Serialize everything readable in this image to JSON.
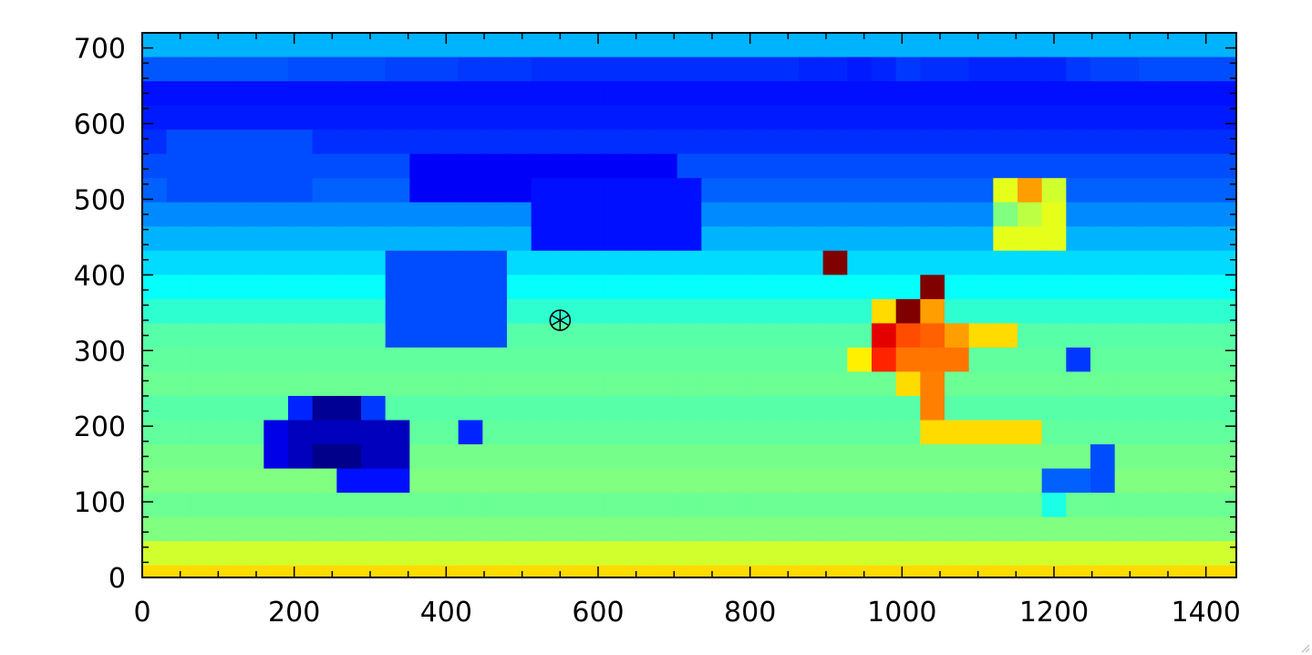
{
  "chart_data": {
    "type": "heatmap",
    "title": "",
    "xlabel": "",
    "ylabel": "",
    "colormap": "jet",
    "vmin": 0,
    "vmax": 100,
    "xlim": [
      0,
      1440
    ],
    "ylim": [
      0,
      720
    ],
    "x_ticks": [
      0,
      200,
      400,
      600,
      800,
      1000,
      1200,
      1400
    ],
    "y_ticks": [
      0,
      100,
      200,
      300,
      400,
      500,
      600,
      700
    ],
    "x_tick_labels": [
      "0",
      "200",
      "400",
      "600",
      "800",
      "1000",
      "1200",
      "1400"
    ],
    "y_tick_labels": [
      "0",
      "100",
      "200",
      "300",
      "400",
      "500",
      "600",
      "700"
    ],
    "cell_width": 32,
    "cell_height": 32,
    "row_order": "top-to-bottom",
    "marker": {
      "x": 550,
      "y": 340,
      "symbol": "circled-asterisk"
    },
    "grid": false,
    "z": [
      [
        30,
        30,
        30,
        30,
        30,
        30,
        30,
        30,
        30,
        30,
        30,
        30,
        30,
        30,
        30,
        30,
        30,
        30,
        30,
        30,
        30,
        30,
        30,
        30,
        30,
        30,
        30,
        30,
        30,
        30,
        30,
        30,
        30,
        30,
        30,
        30,
        30,
        30,
        30,
        30,
        30,
        30,
        30,
        30,
        30
      ],
      [
        21,
        21,
        21,
        21,
        21,
        21,
        20,
        20,
        20,
        20,
        19,
        19,
        19,
        18,
        18,
        18,
        17,
        17,
        17,
        17,
        17,
        17,
        17,
        17,
        17,
        17,
        17,
        16,
        16,
        15,
        16,
        18,
        17,
        17,
        16,
        16,
        16,
        16,
        18,
        19,
        19,
        20,
        20,
        20,
        20
      ],
      [
        14,
        14,
        14,
        14,
        14,
        14,
        14,
        14,
        14,
        14,
        14,
        14,
        14,
        14,
        14,
        14,
        14,
        14,
        14,
        14,
        14,
        14,
        14,
        14,
        14,
        14,
        14,
        14,
        14,
        14,
        14,
        14,
        14,
        14,
        14,
        14,
        14,
        14,
        14,
        14,
        14,
        14,
        14,
        14,
        14
      ],
      [
        15,
        15,
        15,
        15,
        15,
        15,
        15,
        15,
        15,
        15,
        15,
        15,
        15,
        15,
        15,
        15,
        15,
        15,
        15,
        15,
        15,
        15,
        15,
        15,
        15,
        15,
        15,
        15,
        15,
        15,
        15,
        15,
        15,
        15,
        15,
        15,
        15,
        15,
        15,
        15,
        15,
        15,
        15,
        15,
        15
      ],
      [
        17,
        17,
        17,
        17,
        17,
        17,
        17,
        17,
        17,
        17,
        17,
        17,
        17,
        17,
        17,
        17,
        17,
        17,
        17,
        17,
        17,
        17,
        17,
        17,
        17,
        17,
        17,
        17,
        17,
        17,
        17,
        17,
        17,
        17,
        17,
        17,
        17,
        17,
        17,
        17,
        17,
        17,
        17,
        17,
        17
      ],
      [
        20,
        20,
        20,
        20,
        20,
        20,
        20,
        20,
        20,
        20,
        20,
        20,
        20,
        20,
        20,
        20,
        20,
        20,
        20,
        20,
        20,
        20,
        20,
        20,
        20,
        20,
        20,
        20,
        20,
        20,
        20,
        20,
        20,
        20,
        20,
        20,
        20,
        20,
        20,
        20,
        20,
        20,
        20,
        20,
        20
      ],
      [
        22,
        22,
        22,
        22,
        22,
        22,
        22,
        22,
        22,
        22,
        22,
        22,
        22,
        22,
        22,
        22,
        22,
        22,
        22,
        22,
        22,
        22,
        22,
        22,
        22,
        22,
        22,
        22,
        22,
        22,
        22,
        22,
        22,
        22,
        22,
        22,
        22,
        22,
        22,
        22,
        22,
        22,
        22,
        22,
        22
      ],
      [
        26,
        26,
        26,
        26,
        26,
        26,
        26,
        26,
        26,
        26,
        26,
        26,
        26,
        26,
        26,
        26,
        26,
        26,
        26,
        26,
        26,
        26,
        26,
        26,
        26,
        26,
        26,
        26,
        26,
        26,
        26,
        26,
        26,
        26,
        26,
        26,
        26,
        26,
        26,
        26,
        26,
        26,
        26,
        26,
        26
      ],
      [
        30,
        30,
        30,
        30,
        30,
        30,
        30,
        30,
        30,
        30,
        30,
        30,
        30,
        30,
        30,
        30,
        30,
        30,
        30,
        30,
        30,
        30,
        30,
        30,
        30,
        30,
        30,
        30,
        30,
        30,
        30,
        30,
        30,
        30,
        30,
        30,
        30,
        30,
        30,
        30,
        30,
        30,
        30,
        30,
        30
      ],
      [
        34,
        34,
        34,
        34,
        34,
        34,
        34,
        34,
        34,
        34,
        34,
        34,
        34,
        34,
        34,
        34,
        34,
        34,
        34,
        34,
        34,
        34,
        34,
        34,
        34,
        34,
        34,
        34,
        34,
        34,
        34,
        34,
        34,
        34,
        34,
        34,
        34,
        34,
        34,
        34,
        34,
        34,
        34,
        34,
        34
      ],
      [
        38,
        38,
        38,
        38,
        38,
        38,
        38,
        38,
        38,
        38,
        38,
        38,
        38,
        38,
        38,
        38,
        38,
        38,
        38,
        38,
        38,
        38,
        38,
        38,
        38,
        38,
        38,
        38,
        38,
        38,
        38,
        38,
        38,
        38,
        38,
        38,
        38,
        38,
        38,
        38,
        38,
        38,
        38,
        38,
        38
      ],
      [
        42,
        42,
        42,
        42,
        42,
        42,
        42,
        42,
        42,
        42,
        42,
        42,
        42,
        42,
        42,
        42,
        42,
        42,
        42,
        42,
        42,
        42,
        42,
        42,
        42,
        42,
        42,
        42,
        42,
        42,
        42,
        42,
        42,
        42,
        42,
        42,
        42,
        42,
        42,
        42,
        42,
        42,
        42,
        42,
        42
      ],
      [
        46,
        46,
        46,
        46,
        46,
        46,
        46,
        46,
        46,
        46,
        46,
        46,
        46,
        46,
        46,
        46,
        46,
        46,
        46,
        46,
        46,
        46,
        46,
        46,
        46,
        46,
        46,
        46,
        46,
        46,
        46,
        46,
        46,
        46,
        46,
        46,
        46,
        46,
        46,
        46,
        46,
        46,
        46,
        46,
        46
      ],
      [
        47,
        47,
        47,
        47,
        47,
        47,
        47,
        47,
        47,
        47,
        47,
        47,
        47,
        47,
        47,
        47,
        47,
        47,
        47,
        47,
        47,
        47,
        47,
        47,
        47,
        47,
        47,
        47,
        47,
        47,
        47,
        47,
        47,
        47,
        47,
        47,
        47,
        47,
        47,
        47,
        47,
        47,
        47,
        47,
        47
      ],
      [
        48,
        48,
        48,
        48,
        48,
        48,
        48,
        48,
        48,
        48,
        48,
        48,
        48,
        48,
        48,
        48,
        48,
        48,
        48,
        48,
        48,
        48,
        48,
        48,
        48,
        48,
        48,
        48,
        48,
        48,
        48,
        48,
        48,
        48,
        48,
        48,
        48,
        48,
        48,
        48,
        48,
        48,
        48,
        48,
        48
      ],
      [
        46,
        46,
        46,
        46,
        46,
        46,
        46,
        46,
        46,
        46,
        46,
        46,
        46,
        46,
        46,
        46,
        46,
        46,
        46,
        46,
        46,
        46,
        46,
        46,
        46,
        46,
        46,
        46,
        46,
        46,
        46,
        46,
        46,
        46,
        46,
        46,
        46,
        46,
        46,
        46,
        46,
        46,
        46,
        46,
        46
      ],
      [
        47,
        47,
        47,
        47,
        47,
        47,
        47,
        47,
        47,
        47,
        47,
        47,
        47,
        47,
        47,
        47,
        47,
        47,
        47,
        47,
        47,
        47,
        47,
        47,
        47,
        47,
        47,
        47,
        47,
        47,
        47,
        47,
        47,
        47,
        47,
        47,
        47,
        47,
        47,
        47,
        47,
        47,
        47,
        47,
        47
      ],
      [
        49,
        49,
        49,
        49,
        49,
        49,
        49,
        49,
        49,
        49,
        49,
        49,
        49,
        49,
        49,
        49,
        49,
        49,
        49,
        49,
        49,
        49,
        49,
        49,
        49,
        49,
        49,
        49,
        49,
        49,
        49,
        49,
        49,
        49,
        49,
        49,
        49,
        49,
        49,
        49,
        49,
        49,
        49,
        49,
        49
      ],
      [
        50,
        50,
        50,
        50,
        50,
        50,
        50,
        50,
        50,
        50,
        50,
        50,
        50,
        50,
        50,
        50,
        50,
        50,
        50,
        50,
        50,
        50,
        50,
        50,
        50,
        50,
        50,
        50,
        50,
        50,
        50,
        50,
        50,
        50,
        50,
        50,
        50,
        50,
        50,
        50,
        50,
        50,
        50,
        50,
        50
      ],
      [
        48,
        48,
        48,
        48,
        48,
        48,
        48,
        48,
        48,
        48,
        48,
        48,
        48,
        48,
        48,
        48,
        48,
        48,
        48,
        48,
        48,
        48,
        48,
        48,
        48,
        48,
        48,
        48,
        48,
        48,
        48,
        48,
        48,
        48,
        48,
        48,
        48,
        48,
        48,
        48,
        48,
        48,
        48,
        48,
        48
      ],
      [
        50,
        50,
        50,
        50,
        50,
        50,
        50,
        50,
        50,
        50,
        50,
        50,
        50,
        50,
        50,
        50,
        50,
        50,
        50,
        50,
        50,
        50,
        50,
        50,
        50,
        50,
        50,
        50,
        50,
        50,
        50,
        50,
        50,
        50,
        50,
        50,
        50,
        50,
        50,
        50,
        50,
        50,
        50,
        50,
        50
      ],
      [
        58,
        58,
        58,
        58,
        58,
        58,
        58,
        58,
        58,
        58,
        58,
        58,
        58,
        58,
        58,
        58,
        58,
        58,
        58,
        58,
        58,
        58,
        58,
        58,
        58,
        58,
        58,
        58,
        58,
        58,
        58,
        58,
        58,
        58,
        58,
        58,
        58,
        58,
        58,
        58,
        58,
        58,
        58,
        58,
        58
      ],
      [
        66,
        66,
        66,
        66,
        66,
        66,
        66,
        66,
        66,
        66,
        66,
        66,
        66,
        66,
        66,
        66,
        66,
        66,
        66,
        66,
        66,
        66,
        66,
        66,
        66,
        66,
        66,
        66,
        66,
        66,
        66,
        66,
        66,
        66,
        66,
        66,
        66,
        66,
        66,
        66,
        66,
        66,
        66,
        66,
        66
      ]
    ],
    "z_patches": [
      {
        "rows": [
          4,
          6
        ],
        "cols": [
          1,
          6
        ],
        "value": 20
      },
      {
        "rows": [
          5,
          6
        ],
        "cols": [
          11,
          21
        ],
        "value": 12
      },
      {
        "rows": [
          6,
          8
        ],
        "cols": [
          16,
          22
        ],
        "value": 14
      },
      {
        "rows": [
          6,
          8
        ],
        "cols": [
          35,
          37
        ],
        "value": 60,
        "cells": [
          [
            6,
            36,
            72
          ],
          [
            6,
            35,
            60
          ],
          [
            6,
            37,
            58
          ],
          [
            7,
            36,
            56
          ],
          [
            7,
            35,
            50
          ]
        ]
      },
      {
        "rows": [
          9,
          12
        ],
        "cols": [
          10,
          14
        ],
        "value": 20
      },
      {
        "rows": [
          9,
          9
        ],
        "cols": [
          28,
          28
        ],
        "value": 100
      },
      {
        "rows": [
          10,
          10
        ],
        "cols": [
          32,
          32
        ],
        "value": 100
      },
      {
        "rows": [
          11,
          11
        ],
        "cols": [
          31,
          31
        ],
        "value": 100
      },
      {
        "rows": [
          11,
          11
        ],
        "cols": [
          30,
          30
        ],
        "value": 66
      },
      {
        "rows": [
          11,
          11
        ],
        "cols": [
          32,
          32
        ],
        "value": 72
      },
      {
        "rows": [
          12,
          12
        ],
        "cols": [
          30,
          30
        ],
        "value": 90
      },
      {
        "rows": [
          12,
          12
        ],
        "cols": [
          31,
          31
        ],
        "value": 80
      },
      {
        "rows": [
          12,
          12
        ],
        "cols": [
          32,
          32
        ],
        "value": 78
      },
      {
        "rows": [
          12,
          12
        ],
        "cols": [
          33,
          33
        ],
        "value": 72
      },
      {
        "rows": [
          12,
          12
        ],
        "cols": [
          34,
          35
        ],
        "value": 66
      },
      {
        "rows": [
          13,
          13
        ],
        "cols": [
          30,
          30
        ],
        "value": 84
      },
      {
        "rows": [
          13,
          13
        ],
        "cols": [
          31,
          33
        ],
        "value": 76
      },
      {
        "rows": [
          13,
          13
        ],
        "cols": [
          29,
          29
        ],
        "value": 64
      },
      {
        "rows": [
          13,
          13
        ],
        "cols": [
          38,
          38
        ],
        "value": 18
      },
      {
        "rows": [
          14,
          14
        ],
        "cols": [
          31,
          31
        ],
        "value": 66
      },
      {
        "rows": [
          14,
          14
        ],
        "cols": [
          32,
          32
        ],
        "value": 75
      },
      {
        "rows": [
          15,
          15
        ],
        "cols": [
          32,
          32
        ],
        "value": 75
      },
      {
        "rows": [
          15,
          16
        ],
        "cols": [
          7,
          8
        ],
        "value": 2
      },
      {
        "rows": [
          15,
          15
        ],
        "cols": [
          6,
          6
        ],
        "value": 16
      },
      {
        "rows": [
          15,
          15
        ],
        "cols": [
          9,
          9
        ],
        "value": 18
      },
      {
        "rows": [
          16,
          17
        ],
        "cols": [
          5,
          5
        ],
        "value": 10
      },
      {
        "rows": [
          16,
          17
        ],
        "cols": [
          6,
          10
        ],
        "value": 6
      },
      {
        "rows": [
          17,
          17
        ],
        "cols": [
          7,
          8
        ],
        "value": 1
      },
      {
        "rows": [
          16,
          16
        ],
        "cols": [
          13,
          13
        ],
        "value": 16
      },
      {
        "rows": [
          16,
          16
        ],
        "cols": [
          32,
          36
        ],
        "value": 66
      },
      {
        "rows": [
          17,
          18
        ],
        "cols": [
          39,
          39
        ],
        "value": 20
      },
      {
        "rows": [
          18,
          18
        ],
        "cols": [
          8,
          10
        ],
        "value": 14
      },
      {
        "rows": [
          18,
          18
        ],
        "cols": [
          37,
          38
        ],
        "value": 22
      },
      {
        "rows": [
          19,
          19
        ],
        "cols": [
          37,
          37
        ],
        "value": 40
      }
    ]
  },
  "ui": {
    "resize_grip_icon": "resize-grip-icon"
  }
}
